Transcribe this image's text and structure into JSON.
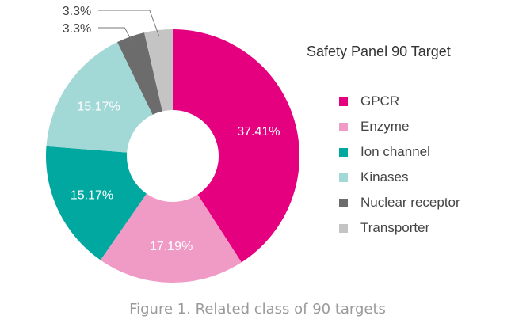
{
  "chart_data": {
    "type": "pie",
    "donut": true,
    "title": "Safety Panel 90 Target",
    "caption": "Figure 1. Related class of 90 targets",
    "legend_position": "right",
    "slices": [
      {
        "label": "GPCR",
        "value": 37.41,
        "display": "37.41%",
        "color": "#e4007f"
      },
      {
        "label": "Enzyme",
        "value": 17.19,
        "display": "17.19%",
        "color": "#f09bc6"
      },
      {
        "label": "Ion channel",
        "value": 15.17,
        "display": "15.17%",
        "color": "#00a8a0"
      },
      {
        "label": "Kinases",
        "value": 15.17,
        "display": "15.17%",
        "color": "#a2d8d6"
      },
      {
        "label": "Nuclear receptor",
        "value": 3.3,
        "display": "3.3%",
        "color": "#6c6c6c"
      },
      {
        "label": "Transporter",
        "value": 3.3,
        "display": "3.3%",
        "color": "#c4c4c4"
      }
    ]
  }
}
